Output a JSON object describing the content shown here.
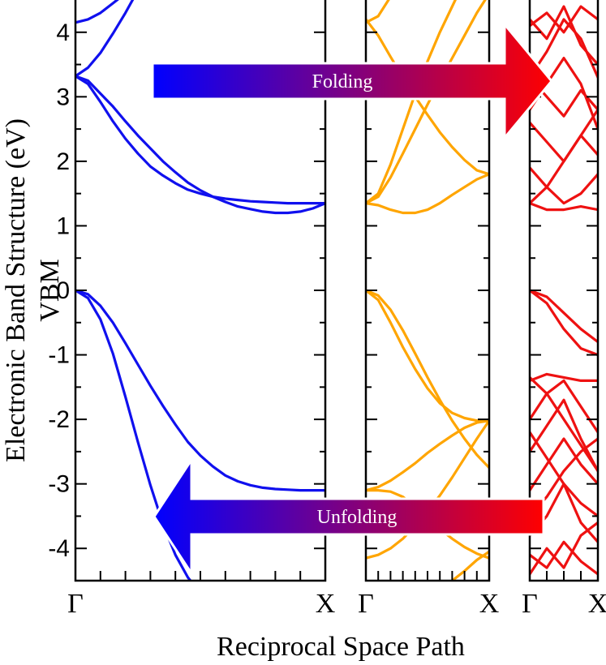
{
  "chart_data": {
    "type": "line",
    "ylabel_line1": "Electronic Band Structure (eV)",
    "ylabel_line2": "VBM",
    "xlabel": "Reciprocal Space Path",
    "ylim": [
      -4.5,
      4.5
    ],
    "yticks": [
      "-4",
      "-3",
      "-2",
      "-1",
      "0",
      "1",
      "2",
      "3",
      "4"
    ],
    "grid": false,
    "legend": "none",
    "panels": [
      {
        "color": "#1010ee",
        "xlabels": [
          "Γ",
          "X"
        ],
        "bands": [
          {
            "x": [
              0,
              0.05,
              0.1,
              0.15,
              0.2,
              0.25
            ],
            "y": [
              4.15,
              4.2,
              4.3,
              4.45,
              4.6,
              4.8
            ]
          },
          {
            "x": [
              0,
              0.05,
              0.1,
              0.15,
              0.2,
              0.25,
              0.3,
              0.35,
              0.4,
              0.45,
              0.5
            ],
            "y": [
              3.32,
              3.45,
              3.68,
              3.98,
              4.3,
              4.65,
              5.05,
              5.5,
              5.95,
              6.4,
              6.9
            ]
          },
          {
            "x": [
              0,
              0.05,
              0.1,
              0.15,
              0.2,
              0.25,
              0.3,
              0.35,
              0.4,
              0.45,
              0.5,
              0.55,
              0.6,
              0.65,
              0.7,
              0.75,
              0.8,
              0.85,
              0.9,
              0.95,
              1.0
            ],
            "y": [
              3.32,
              3.25,
              3.05,
              2.85,
              2.62,
              2.4,
              2.2,
              2.0,
              1.83,
              1.67,
              1.55,
              1.45,
              1.37,
              1.3,
              1.26,
              1.22,
              1.2,
              1.2,
              1.22,
              1.27,
              1.35
            ]
          },
          {
            "x": [
              0,
              0.05,
              0.1,
              0.15,
              0.2,
              0.25,
              0.3,
              0.35,
              0.4,
              0.45,
              0.5,
              0.55,
              0.6,
              0.65,
              0.7,
              0.75,
              0.8,
              0.85,
              0.9,
              0.95,
              1.0
            ],
            "y": [
              3.32,
              3.2,
              2.92,
              2.62,
              2.35,
              2.12,
              1.92,
              1.78,
              1.66,
              1.56,
              1.5,
              1.45,
              1.42,
              1.4,
              1.38,
              1.37,
              1.36,
              1.35,
              1.35,
              1.35,
              1.35
            ]
          },
          {
            "x": [
              0,
              0.05,
              0.1,
              0.15,
              0.2,
              0.25,
              0.3,
              0.35,
              0.4,
              0.45,
              0.5,
              0.55,
              0.6,
              0.65,
              0.7,
              0.75,
              0.8,
              0.85,
              0.9,
              0.95,
              1.0
            ],
            "y": [
              0,
              -0.06,
              -0.24,
              -0.5,
              -0.82,
              -1.15,
              -1.48,
              -1.79,
              -2.08,
              -2.35,
              -2.56,
              -2.73,
              -2.87,
              -2.96,
              -3.02,
              -3.06,
              -3.08,
              -3.09,
              -3.1,
              -3.1,
              -3.1
            ]
          },
          {
            "x": [
              0,
              0.05,
              0.1,
              0.15,
              0.2,
              0.25,
              0.3,
              0.35,
              0.4,
              0.45,
              0.5
            ],
            "y": [
              0,
              -0.12,
              -0.45,
              -0.98,
              -1.65,
              -2.35,
              -3.02,
              -3.62,
              -4.1,
              -4.45,
              -4.7
            ]
          }
        ]
      },
      {
        "color": "#ffa500",
        "xlabels": [
          "Γ",
          "X"
        ],
        "bands": [
          {
            "x": [
              0,
              0.1,
              0.2,
              0.3,
              0.4,
              0.5,
              0.6,
              0.7,
              0.8,
              0.9,
              1.0
            ],
            "y": [
              4.15,
              4.25,
              4.55,
              4.9,
              5.3,
              5.7,
              6.1,
              6.5,
              6.9,
              7.3,
              7.7
            ]
          },
          {
            "x": [
              0,
              0.1,
              0.2,
              0.3,
              0.4,
              0.5,
              0.6,
              0.7,
              0.8,
              0.9,
              1.0
            ],
            "y": [
              1.35,
              1.5,
              1.95,
              2.5,
              3.05,
              3.55,
              4.0,
              4.4,
              4.8,
              5.2,
              5.6
            ]
          },
          {
            "x": [
              0,
              0.1,
              0.2,
              0.3,
              0.4,
              0.5,
              0.6,
              0.7,
              0.8,
              0.9,
              1.0
            ],
            "y": [
              1.35,
              1.32,
              1.25,
              1.2,
              1.2,
              1.25,
              1.35,
              1.48,
              1.6,
              1.72,
              1.8
            ]
          },
          {
            "x": [
              0,
              0.1,
              0.2,
              0.3,
              0.4,
              0.5,
              0.6,
              0.7,
              0.8,
              0.9,
              1.0
            ],
            "y": [
              4.2,
              3.95,
              3.62,
              3.3,
              3.0,
              2.72,
              2.45,
              2.22,
              2.02,
              1.86,
              1.8
            ]
          },
          {
            "x": [
              0,
              0.1,
              0.2,
              0.3,
              0.4,
              0.5,
              0.6,
              0.7,
              0.8,
              0.9,
              1.0
            ],
            "y": [
              1.35,
              1.45,
              1.75,
              2.12,
              2.5,
              2.88,
              3.25,
              3.6,
              3.95,
              4.3,
              4.6
            ]
          },
          {
            "x": [
              0,
              0.1,
              0.2,
              0.3,
              0.4,
              0.5,
              0.6,
              0.7,
              0.8,
              0.9,
              1.0
            ],
            "y": [
              0,
              -0.15,
              -0.5,
              -0.88,
              -1.22,
              -1.52,
              -1.75,
              -1.9,
              -1.98,
              -2.02,
              -2.02
            ]
          },
          {
            "x": [
              0,
              0.1,
              0.2,
              0.3,
              0.4,
              0.5,
              0.6,
              0.7,
              0.8,
              0.9,
              1.0
            ],
            "y": [
              0,
              -0.08,
              -0.3,
              -0.62,
              -0.98,
              -1.35,
              -1.7,
              -2.02,
              -2.3,
              -2.55,
              -2.75
            ]
          },
          {
            "x": [
              0,
              0.1,
              0.2,
              0.3,
              0.4,
              0.5,
              0.6,
              0.7,
              0.8,
              0.9,
              1.0
            ],
            "y": [
              -3.1,
              -3.05,
              -2.95,
              -2.82,
              -2.68,
              -2.52,
              -2.38,
              -2.25,
              -2.13,
              -2.05,
              -2.02
            ]
          },
          {
            "x": [
              0,
              0.1,
              0.2,
              0.3,
              0.4,
              0.5,
              0.6,
              0.7,
              0.8,
              0.9,
              1.0
            ],
            "y": [
              -3.1,
              -3.1,
              -3.12,
              -3.2,
              -3.35,
              -3.52,
              -3.7,
              -3.85,
              -3.98,
              -4.08,
              -4.15
            ]
          },
          {
            "x": [
              0,
              0.1,
              0.2,
              0.3,
              0.4,
              0.5,
              0.6,
              0.7,
              0.8,
              0.9,
              1.0
            ],
            "y": [
              -4.15,
              -4.1,
              -4.0,
              -3.85,
              -3.65,
              -3.42,
              -3.18,
              -2.9,
              -2.6,
              -2.3,
              -2.02
            ]
          },
          {
            "x": [
              0.6,
              0.7,
              0.8,
              0.9,
              1.0
            ],
            "y": [
              -4.6,
              -4.5,
              -4.35,
              -4.18,
              -4.05
            ]
          }
        ]
      },
      {
        "color": "#ee1111",
        "xlabels": [
          "Γ",
          "X"
        ],
        "bands": [
          {
            "x": [
              0,
              0.25,
              0.5,
              0.75,
              1.0
            ],
            "y": [
              4.1,
              4.3,
              4.0,
              4.4,
              4.2
            ]
          },
          {
            "x": [
              0,
              0.25,
              0.5,
              0.75,
              1.0
            ],
            "y": [
              4.2,
              3.9,
              4.4,
              3.8,
              3.5
            ]
          },
          {
            "x": [
              0,
              0.25,
              0.5,
              0.75,
              1.0
            ],
            "y": [
              3.3,
              3.7,
              4.2,
              3.9,
              3.3
            ]
          },
          {
            "x": [
              0,
              0.25,
              0.5,
              0.75,
              1.0
            ],
            "y": [
              3.3,
              3.0,
              2.7,
              3.1,
              2.8
            ]
          },
          {
            "x": [
              0,
              0.25,
              0.5,
              0.75,
              1.0
            ],
            "y": [
              2.8,
              3.2,
              3.6,
              3.2,
              2.5
            ]
          },
          {
            "x": [
              0,
              0.25,
              0.5,
              0.75,
              1.0
            ],
            "y": [
              2.6,
              2.3,
              2.0,
              2.4,
              2.1
            ]
          },
          {
            "x": [
              0,
              0.25,
              0.5,
              0.75,
              1.0
            ],
            "y": [
              1.35,
              1.6,
              2.0,
              2.4,
              2.8
            ]
          },
          {
            "x": [
              0,
              0.25,
              0.5,
              0.75,
              1.0
            ],
            "y": [
              1.9,
              1.6,
              1.35,
              1.5,
              1.8
            ]
          },
          {
            "x": [
              0,
              0.25,
              0.5,
              0.75,
              1.0
            ],
            "y": [
              1.35,
              1.25,
              1.25,
              1.3,
              1.25
            ]
          },
          {
            "x": [
              0,
              0.25,
              0.5,
              0.75,
              1.0
            ],
            "y": [
              0,
              -0.2,
              -0.6,
              -0.9,
              -1.0
            ]
          },
          {
            "x": [
              0,
              0.25,
              0.5,
              0.75,
              1.0
            ],
            "y": [
              0,
              -0.1,
              -0.35,
              -0.6,
              -0.8
            ]
          },
          {
            "x": [
              0,
              0.25,
              0.5,
              0.75,
              1.0
            ],
            "y": [
              -1.35,
              -1.6,
              -2.0,
              -2.4,
              -2.8
            ]
          },
          {
            "x": [
              0,
              0.25,
              0.5,
              0.75,
              1.0
            ],
            "y": [
              -1.4,
              -1.3,
              -1.35,
              -1.4,
              -1.4
            ]
          },
          {
            "x": [
              0,
              0.25,
              0.5,
              0.75,
              1.0
            ],
            "y": [
              -2.0,
              -1.6,
              -1.4,
              -1.8,
              -2.2
            ]
          },
          {
            "x": [
              0,
              0.25,
              0.5,
              0.75,
              1.0
            ],
            "y": [
              -2.5,
              -2.1,
              -1.7,
              -2.3,
              -2.8
            ]
          },
          {
            "x": [
              0,
              0.25,
              0.5,
              0.75,
              1.0
            ],
            "y": [
              -3.1,
              -2.7,
              -2.3,
              -2.7,
              -3.0
            ]
          },
          {
            "x": [
              0,
              0.25,
              0.5,
              0.75,
              1.0
            ],
            "y": [
              -2.2,
              -2.6,
              -3.0,
              -3.3,
              -3.5
            ]
          },
          {
            "x": [
              0,
              0.25,
              0.5,
              0.75,
              1.0
            ],
            "y": [
              -3.5,
              -3.2,
              -2.8,
              -2.5,
              -2.3
            ]
          },
          {
            "x": [
              0,
              0.25,
              0.5,
              0.75,
              1.0
            ],
            "y": [
              -3.8,
              -3.5,
              -3.0,
              -3.6,
              -3.9
            ]
          },
          {
            "x": [
              0,
              0.25,
              0.5,
              0.75,
              1.0
            ],
            "y": [
              -4.1,
              -4.3,
              -3.9,
              -4.2,
              -4.4
            ]
          },
          {
            "x": [
              0,
              0.25,
              0.5,
              0.75,
              1.0
            ],
            "y": [
              -4.4,
              -4.0,
              -4.3,
              -3.8,
              -3.6
            ]
          }
        ]
      }
    ],
    "annotations": [
      {
        "text": "Folding",
        "direction": "right",
        "y": 3.2
      },
      {
        "text": "Unfolding",
        "direction": "left",
        "y": -3.5
      }
    ]
  }
}
